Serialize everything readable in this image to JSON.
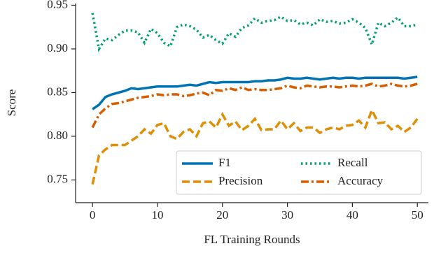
{
  "chart_data": {
    "type": "line",
    "xlabel": "FL Training Rounds",
    "ylabel": "Score",
    "x": [
      0,
      1,
      2,
      3,
      4,
      5,
      6,
      7,
      8,
      9,
      10,
      11,
      12,
      13,
      14,
      15,
      16,
      17,
      18,
      19,
      20,
      21,
      22,
      23,
      24,
      25,
      26,
      27,
      28,
      29,
      30,
      31,
      32,
      33,
      34,
      35,
      36,
      37,
      38,
      39,
      40,
      41,
      42,
      43,
      44,
      45,
      46,
      47,
      48,
      49,
      50
    ],
    "xlim": [
      -2.6,
      51.7
    ],
    "xticks": [
      0,
      10,
      20,
      30,
      40,
      50
    ],
    "ylim": [
      0.724,
      0.952
    ],
    "yticks": [
      0.75,
      {
        "value": 0.8,
        "label": "0.80"
      },
      0.85,
      {
        "value": 0.9,
        "label": "0.90"
      },
      0.95
    ],
    "legend": "lower right",
    "legend_columns": 2,
    "series": [
      {
        "name": "F1",
        "color": "#0173b2",
        "dash": "solid",
        "values": [
          0.831,
          0.836,
          0.845,
          0.848,
          0.85,
          0.852,
          0.855,
          0.854,
          0.855,
          0.856,
          0.857,
          0.857,
          0.857,
          0.857,
          0.858,
          0.859,
          0.858,
          0.86,
          0.862,
          0.861,
          0.862,
          0.862,
          0.862,
          0.862,
          0.862,
          0.863,
          0.863,
          0.864,
          0.864,
          0.865,
          0.867,
          0.866,
          0.866,
          0.867,
          0.866,
          0.865,
          0.866,
          0.867,
          0.866,
          0.867,
          0.867,
          0.866,
          0.867,
          0.867,
          0.867,
          0.867,
          0.867,
          0.867,
          0.866,
          0.867,
          0.868
        ]
      },
      {
        "name": "Recall",
        "color": "#029e73",
        "dash": "dotted",
        "values": [
          0.941,
          0.9,
          0.912,
          0.91,
          0.916,
          0.921,
          0.921,
          0.919,
          0.907,
          0.923,
          0.918,
          0.907,
          0.903,
          0.925,
          0.928,
          0.926,
          0.922,
          0.913,
          0.916,
          0.91,
          0.906,
          0.918,
          0.914,
          0.924,
          0.927,
          0.935,
          0.93,
          0.932,
          0.933,
          0.937,
          0.932,
          0.933,
          0.928,
          0.93,
          0.927,
          0.934,
          0.931,
          0.932,
          0.929,
          0.93,
          0.934,
          0.93,
          0.924,
          0.905,
          0.93,
          0.926,
          0.93,
          0.936,
          0.926,
          0.926,
          0.928
        ]
      },
      {
        "name": "Precision",
        "color": "#de8f05",
        "dash": "dashed",
        "values": [
          0.745,
          0.778,
          0.785,
          0.79,
          0.79,
          0.79,
          0.795,
          0.8,
          0.808,
          0.803,
          0.813,
          0.815,
          0.8,
          0.797,
          0.805,
          0.808,
          0.8,
          0.815,
          0.817,
          0.81,
          0.825,
          0.812,
          0.817,
          0.807,
          0.812,
          0.82,
          0.807,
          0.808,
          0.808,
          0.818,
          0.808,
          0.815,
          0.806,
          0.81,
          0.81,
          0.804,
          0.808,
          0.81,
          0.808,
          0.812,
          0.813,
          0.818,
          0.81,
          0.83,
          0.815,
          0.816,
          0.808,
          0.812,
          0.805,
          0.81,
          0.82
        ]
      },
      {
        "name": "Accuracy",
        "color": "#d55e00",
        "dash": "dashdot",
        "values": [
          0.81,
          0.825,
          0.832,
          0.837,
          0.838,
          0.84,
          0.842,
          0.844,
          0.845,
          0.846,
          0.848,
          0.847,
          0.848,
          0.848,
          0.846,
          0.847,
          0.849,
          0.85,
          0.847,
          0.853,
          0.852,
          0.855,
          0.853,
          0.856,
          0.853,
          0.854,
          0.853,
          0.853,
          0.854,
          0.855,
          0.858,
          0.856,
          0.855,
          0.858,
          0.857,
          0.856,
          0.857,
          0.857,
          0.856,
          0.857,
          0.858,
          0.857,
          0.858,
          0.86,
          0.857,
          0.858,
          0.86,
          0.858,
          0.857,
          0.858,
          0.86
        ]
      }
    ]
  }
}
